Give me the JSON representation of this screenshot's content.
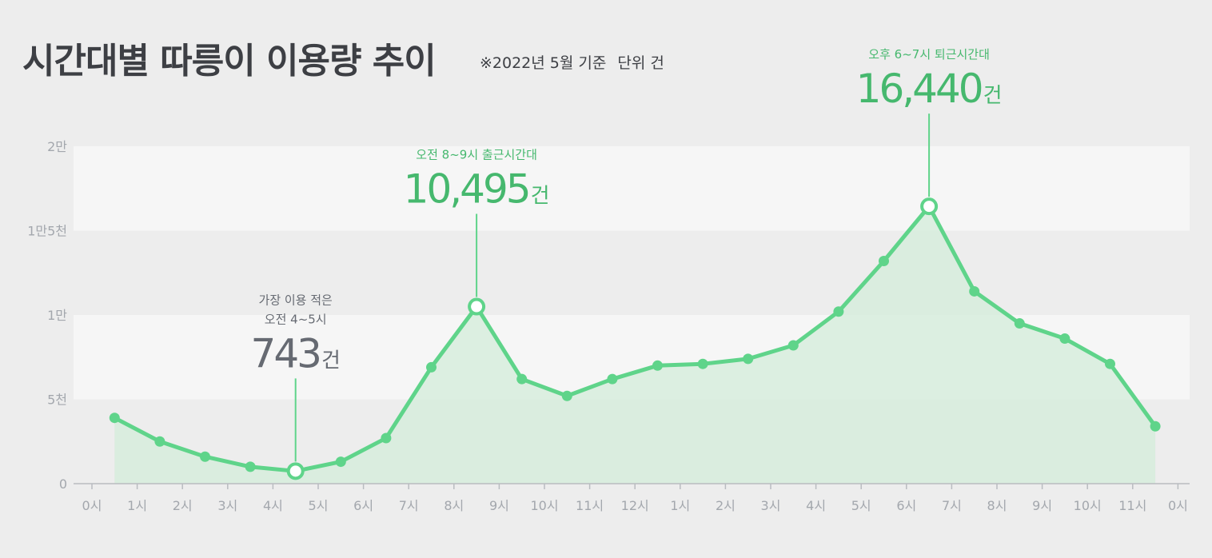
{
  "title": "시간대별 따릉이 이용량 추이",
  "subtitle": "※2022년 5월 기준",
  "unit_note": "단위 건",
  "colors": {
    "line": "#5fd48a",
    "fill": "#d3ecd9",
    "annotation_green": "#46b86e",
    "annotation_gray": "#666a72",
    "axis_text": "#a3a7ad",
    "band": "#f6f6f6"
  },
  "chart_data": {
    "type": "line",
    "x": [
      "0시-1시",
      "1시-2시",
      "2시-3시",
      "3시-4시",
      "4시-5시",
      "5시-6시",
      "6시-7시",
      "7시-8시",
      "8시-9시",
      "9시-10시",
      "10시-11시",
      "11시-12시",
      "12시-1시",
      "1시-2시",
      "2시-3시",
      "3시-4시",
      "4시-5시",
      "5시-6시",
      "6시-7시",
      "7시-8시",
      "8시-9시",
      "9시-10시",
      "10시-11시",
      "11시-12시"
    ],
    "values": [
      3900,
      2500,
      1600,
      1000,
      743,
      1300,
      2700,
      6900,
      10495,
      6200,
      5200,
      6200,
      7000,
      7100,
      7400,
      8200,
      10200,
      13200,
      16440,
      11400,
      9500,
      8600,
      7100,
      3400
    ],
    "ylim": [
      0,
      20000
    ],
    "y_ticks": [
      {
        "value": 0,
        "label": "0"
      },
      {
        "value": 5000,
        "label": "5천"
      },
      {
        "value": 10000,
        "label": "1만"
      },
      {
        "value": 15000,
        "label": "1만5천"
      },
      {
        "value": 20000,
        "label": "2만"
      }
    ],
    "x_ticks": [
      "0시",
      "1시",
      "2시",
      "3시",
      "4시",
      "5시",
      "6시",
      "7시",
      "8시",
      "9시",
      "10시",
      "11시",
      "12시",
      "1시",
      "2시",
      "3시",
      "4시",
      "5시",
      "6시",
      "7시",
      "8시",
      "9시",
      "10시",
      "11시",
      "0시"
    ],
    "grid": "alternating horizontal bands",
    "annotations": [
      {
        "index": 4,
        "label_lines": [
          "가장 이용 적은",
          "오전 4~5시"
        ],
        "number": "743",
        "unit": "건",
        "style": "gray"
      },
      {
        "index": 8,
        "label_lines": [
          "오전 8~9시 출근시간대"
        ],
        "number": "10,495",
        "unit": "건",
        "style": "green"
      },
      {
        "index": 18,
        "label_lines": [
          "오후 6~7시 퇴근시간대"
        ],
        "number": "16,440",
        "unit": "건",
        "style": "green"
      }
    ]
  }
}
